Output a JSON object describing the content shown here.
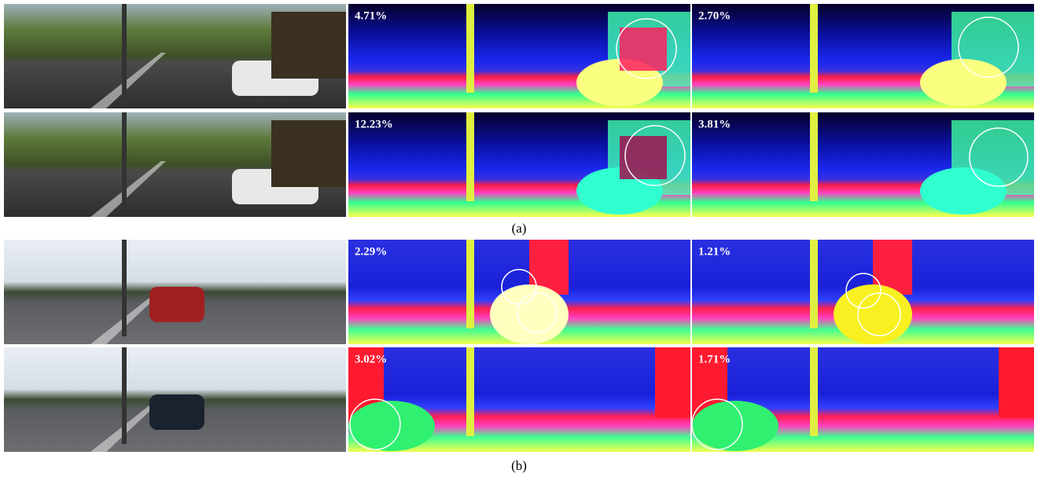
{
  "figure": {
    "groups": [
      {
        "label": "(a)",
        "rows": [
          {
            "errors": [
              "4.71%",
              "2.70%"
            ]
          },
          {
            "errors": [
              "12.23%",
              "3.81%"
            ]
          }
        ]
      },
      {
        "label": "(b)",
        "rows": [
          {
            "errors": [
              "2.29%",
              "1.21%"
            ]
          },
          {
            "errors": [
              "3.02%",
              "1.71%"
            ]
          }
        ]
      }
    ]
  }
}
